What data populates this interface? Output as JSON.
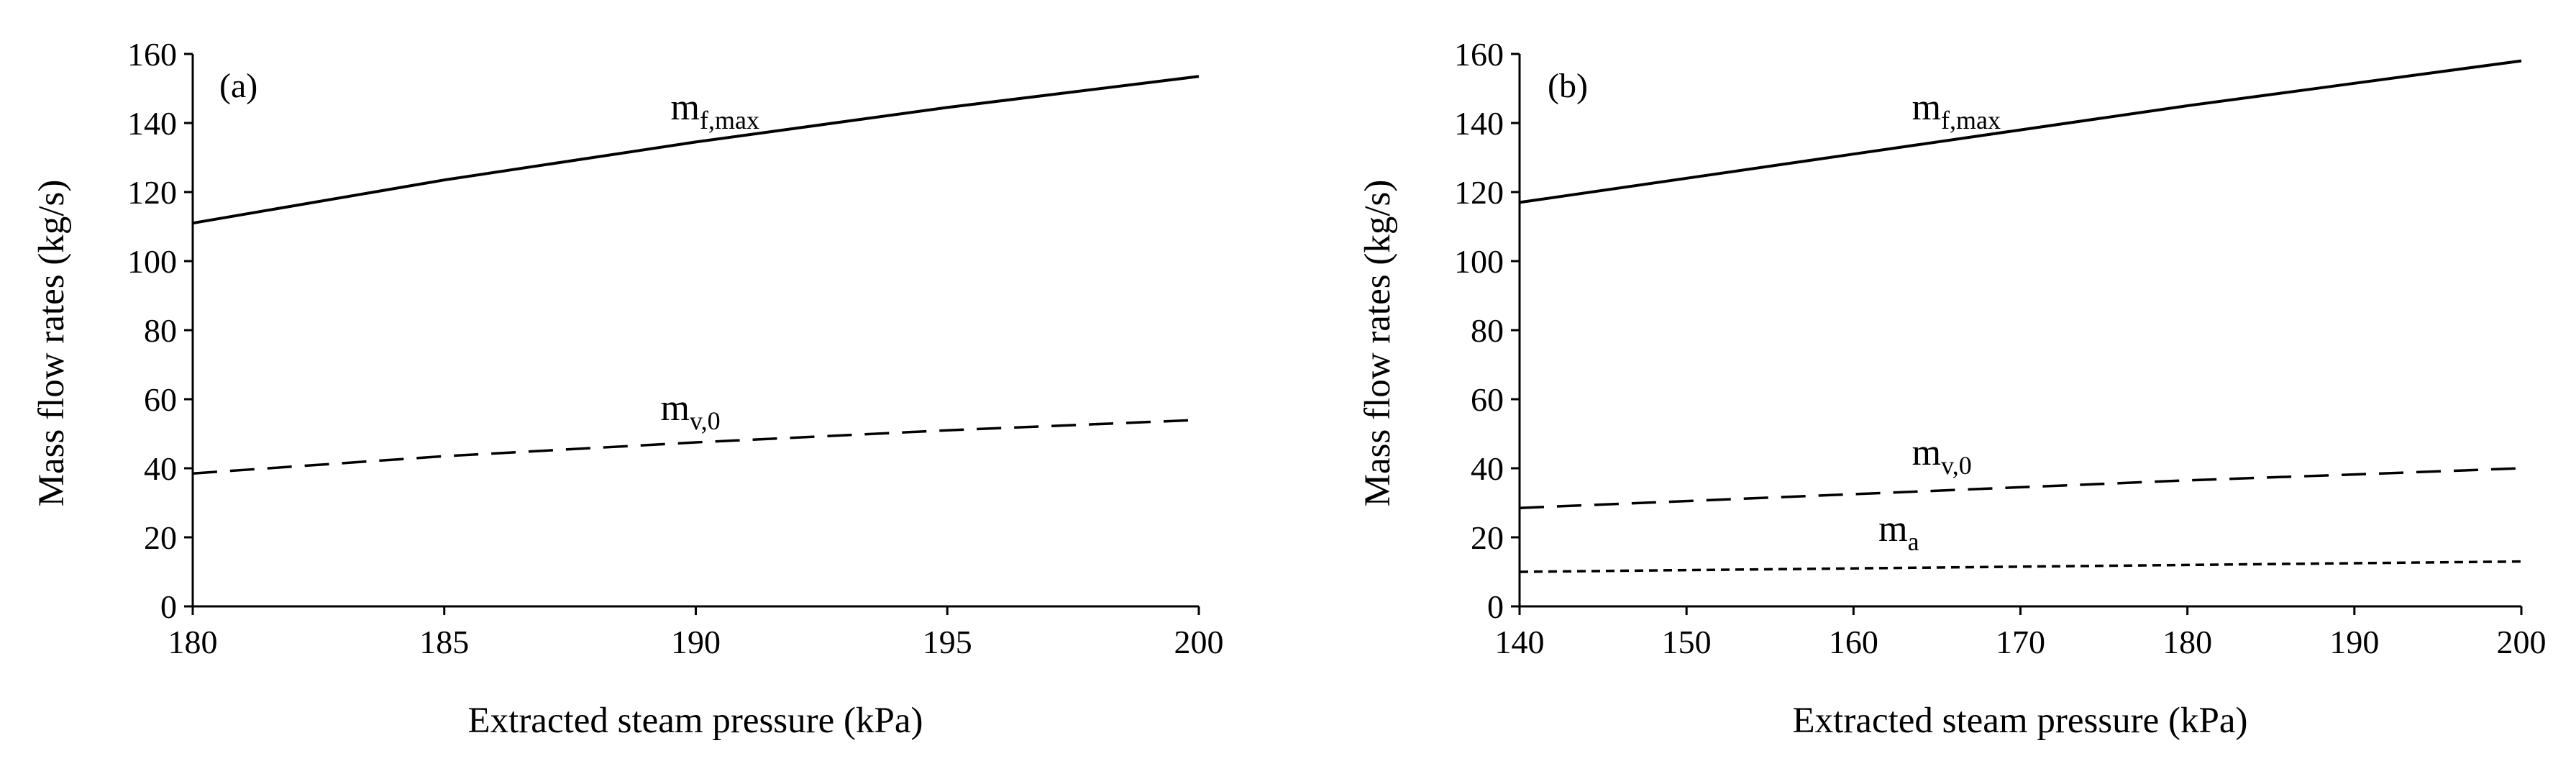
{
  "chart_data": [
    {
      "type": "line",
      "panel_label": "(a)",
      "xlabel": "Extracted steam pressure (kPa)",
      "ylabel": "Mass flow rates (kg/s)",
      "xlim": [
        180,
        200
      ],
      "ylim": [
        0,
        160
      ],
      "x_ticks": [
        180,
        185,
        190,
        195,
        200
      ],
      "y_ticks": [
        0,
        20,
        40,
        60,
        80,
        100,
        120,
        140,
        160
      ],
      "grid": false,
      "series": [
        {
          "name": "m_f,max",
          "label_main": "m",
          "label_sub": "f,max",
          "style": "solid",
          "x": [
            180,
            185,
            190,
            195,
            200
          ],
          "values": [
            111,
            123.5,
            134.5,
            144.5,
            153.5
          ],
          "label_at": [
            189.5,
            141
          ]
        },
        {
          "name": "m_v,0",
          "label_main": "m",
          "label_sub": "v,0",
          "style": "dashed",
          "x": [
            180,
            185,
            190,
            195,
            200
          ],
          "values": [
            38.5,
            43.5,
            47.5,
            51,
            54
          ],
          "label_at": [
            189.3,
            54
          ]
        }
      ]
    },
    {
      "type": "line",
      "panel_label": "(b)",
      "xlabel": "Extracted steam pressure (kPa)",
      "ylabel": "Mass flow rates (kg/s)",
      "xlim": [
        140,
        200
      ],
      "ylim": [
        0,
        160
      ],
      "x_ticks": [
        140,
        150,
        160,
        170,
        180,
        190,
        200
      ],
      "y_ticks": [
        0,
        20,
        40,
        60,
        80,
        100,
        120,
        140,
        160
      ],
      "grid": false,
      "series": [
        {
          "name": "m_f,max",
          "label_main": "m",
          "label_sub": "f,max",
          "style": "solid",
          "x": [
            140,
            150,
            160,
            170,
            180,
            190,
            200
          ],
          "values": [
            117,
            124,
            131,
            138,
            145,
            151.5,
            158
          ],
          "label_at": [
            163.5,
            141
          ]
        },
        {
          "name": "m_v,0",
          "label_main": "m",
          "label_sub": "v,0",
          "style": "dashed",
          "x": [
            140,
            150,
            160,
            170,
            180,
            190,
            200
          ],
          "values": [
            28.5,
            30.5,
            32.5,
            34.5,
            36.5,
            38.2,
            40
          ],
          "label_at": [
            163.5,
            41
          ]
        },
        {
          "name": "m_a",
          "label_main": "m",
          "label_sub": "a",
          "style": "dotted",
          "x": [
            140,
            150,
            160,
            170,
            180,
            190,
            200
          ],
          "values": [
            10,
            10.5,
            11,
            11.5,
            12,
            12.5,
            13
          ],
          "label_at": [
            161.5,
            19
          ]
        }
      ]
    }
  ]
}
